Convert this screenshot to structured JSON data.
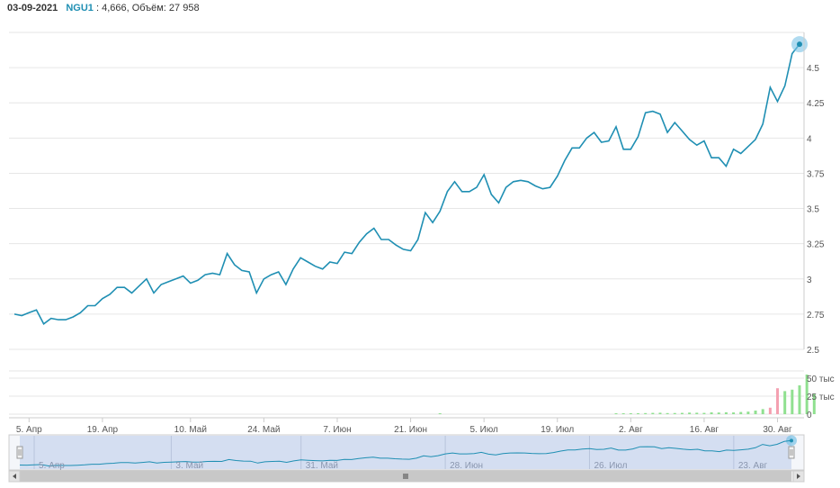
{
  "header": {
    "date": "03-09-2021",
    "ticker": "NGU1",
    "last_value": "4,666",
    "volume_label": "Объём:",
    "volume_value": "27 958"
  },
  "colors": {
    "line": "#1f8fb3",
    "volume_up": "#90e090",
    "volume_down": "#f4a0b0",
    "navigator_fill": "#c9d6ee",
    "grid": "#e6e6e6"
  },
  "chart_data": [
    {
      "type": "line",
      "title": "",
      "series": [
        {
          "values": [
            2.75,
            2.74,
            2.76,
            2.78,
            2.68,
            2.72,
            2.71,
            2.71,
            2.73,
            2.76,
            2.81,
            2.81,
            2.86,
            2.89,
            2.94,
            2.94,
            2.9,
            2.95,
            3.0,
            2.9,
            2.96,
            2.98,
            3.0,
            3.02,
            2.97,
            2.99,
            3.03,
            3.04,
            3.03,
            3.18,
            3.1,
            3.06,
            3.05,
            2.9,
            3.0,
            3.03,
            3.05,
            2.96,
            3.07,
            3.15,
            3.12,
            3.09,
            3.07,
            3.12,
            3.11,
            3.19,
            3.18,
            3.26,
            3.32,
            3.36,
            3.28,
            3.28,
            3.24,
            3.21,
            3.2,
            3.28,
            3.47,
            3.4,
            3.48,
            3.62,
            3.69,
            3.62,
            3.62,
            3.65,
            3.74,
            3.6,
            3.54,
            3.65,
            3.69,
            3.7,
            3.69,
            3.66,
            3.64,
            3.65,
            3.73,
            3.84,
            3.93,
            3.93,
            4.0,
            4.04,
            3.97,
            3.98,
            4.08,
            3.92,
            3.92,
            4.01,
            4.18,
            4.19,
            4.17,
            4.04,
            4.11,
            4.05,
            3.99,
            3.95,
            3.98,
            3.86,
            3.86,
            3.8,
            3.92,
            3.89,
            3.94,
            3.99,
            4.1,
            4.36,
            4.26,
            4.37,
            4.6,
            4.666
          ]
        }
      ],
      "y_ticks": [
        "2.5",
        "2.75",
        "3",
        "3.25",
        "3.5",
        "3.75",
        "4",
        "4.25",
        "4.5"
      ],
      "ylim": [
        2.5,
        4.75
      ],
      "x_ticks": [
        {
          "label": "5. Апр",
          "index": 2
        },
        {
          "label": "19. Апр",
          "index": 12
        },
        {
          "label": "10. Май",
          "index": 24
        },
        {
          "label": "24. Май",
          "index": 34
        },
        {
          "label": "7. Июн",
          "index": 44
        },
        {
          "label": "21. Июн",
          "index": 54
        },
        {
          "label": "5. Июл",
          "index": 64
        },
        {
          "label": "19. Июл",
          "index": 74
        },
        {
          "label": "2. Авг",
          "index": 84
        },
        {
          "label": "16. Авг",
          "index": 94
        },
        {
          "label": "30. Авг",
          "index": 104
        }
      ],
      "grid": true
    },
    {
      "type": "bar",
      "title": "",
      "y_ticks": [
        "0",
        "25 тыс",
        "50 тыс"
      ],
      "ylim": [
        0,
        60000
      ],
      "values": [
        0,
        0,
        0,
        0,
        0,
        0,
        0,
        0,
        0,
        0,
        0,
        0,
        0,
        0,
        0,
        0,
        0,
        0,
        0,
        0,
        0,
        0,
        0,
        0,
        0,
        0,
        0,
        0,
        0,
        0,
        0,
        0,
        0,
        0,
        0,
        0,
        0,
        0,
        0,
        0,
        0,
        0,
        0,
        0,
        0,
        0,
        0,
        0,
        0,
        0,
        0,
        0,
        0,
        0,
        0,
        0,
        0,
        0,
        300,
        0,
        0,
        0,
        0,
        0,
        0,
        0,
        0,
        0,
        0,
        0,
        0,
        0,
        0,
        0,
        0,
        0,
        0,
        0,
        0,
        0,
        0,
        0,
        600,
        900,
        700,
        1200,
        1500,
        1800,
        2000,
        1500,
        1600,
        1800,
        2200,
        2000,
        1800,
        2500,
        2300,
        2600,
        2400,
        3000,
        3500,
        5000,
        7000,
        9000,
        36000,
        32000,
        34000,
        40000,
        55000,
        27958
      ],
      "down_indices": [
        103,
        104
      ]
    },
    {
      "type": "area",
      "title": "navigator",
      "x_ticks": [
        {
          "label": "5. Апр",
          "index": 2
        },
        {
          "label": "3. Май",
          "index": 21
        },
        {
          "label": "31. Май",
          "index": 39
        },
        {
          "label": "28. Июн",
          "index": 59
        },
        {
          "label": "26. Июл",
          "index": 79
        },
        {
          "label": "23. Авг",
          "index": 99
        }
      ]
    }
  ]
}
